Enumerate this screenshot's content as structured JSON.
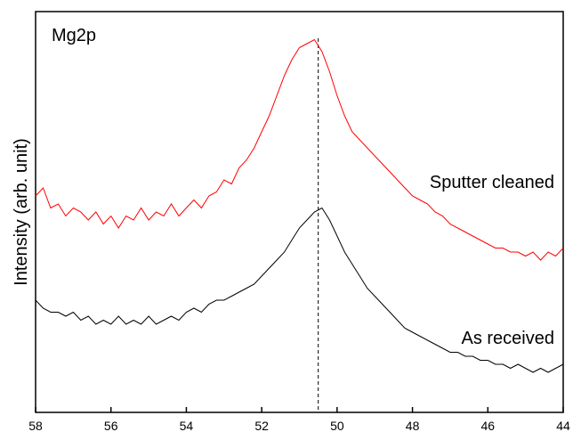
{
  "chart_data": {
    "type": "line",
    "title": "",
    "xlabel": "",
    "ylabel": "Intensity (arb. unit)",
    "xlim": [
      58,
      44
    ],
    "x_reversed": true,
    "ylim": [
      0,
      100
    ],
    "x_ticks": [
      58,
      56,
      54,
      52,
      50,
      48,
      46,
      44
    ],
    "grid": false,
    "panel_label": "Mg2p",
    "reference_line": {
      "x": 50.5,
      "style": "dashed",
      "color": "#000000"
    },
    "series": [
      {
        "label": "Sputter cleaned",
        "color": "#ff0000",
        "points": [
          [
            58.0,
            54
          ],
          [
            57.8,
            56
          ],
          [
            57.6,
            51
          ],
          [
            57.4,
            52
          ],
          [
            57.2,
            49
          ],
          [
            57.0,
            51
          ],
          [
            56.8,
            50
          ],
          [
            56.6,
            48
          ],
          [
            56.4,
            50
          ],
          [
            56.2,
            47
          ],
          [
            56.0,
            49
          ],
          [
            55.8,
            46
          ],
          [
            55.6,
            49
          ],
          [
            55.4,
            48
          ],
          [
            55.2,
            51
          ],
          [
            55.0,
            48
          ],
          [
            54.8,
            50
          ],
          [
            54.6,
            49
          ],
          [
            54.4,
            52
          ],
          [
            54.2,
            49
          ],
          [
            54.0,
            51
          ],
          [
            53.8,
            53
          ],
          [
            53.6,
            51
          ],
          [
            53.4,
            54
          ],
          [
            53.2,
            55
          ],
          [
            53.0,
            58
          ],
          [
            52.8,
            57
          ],
          [
            52.6,
            61
          ],
          [
            52.4,
            63
          ],
          [
            52.2,
            66
          ],
          [
            52.0,
            70
          ],
          [
            51.8,
            74
          ],
          [
            51.6,
            79
          ],
          [
            51.4,
            84
          ],
          [
            51.2,
            88
          ],
          [
            51.0,
            91
          ],
          [
            50.8,
            92
          ],
          [
            50.6,
            93
          ],
          [
            50.4,
            90
          ],
          [
            50.2,
            85
          ],
          [
            50.0,
            79
          ],
          [
            49.8,
            74
          ],
          [
            49.6,
            70
          ],
          [
            49.4,
            68
          ],
          [
            49.2,
            66
          ],
          [
            49.0,
            64
          ],
          [
            48.8,
            62
          ],
          [
            48.6,
            60
          ],
          [
            48.4,
            58
          ],
          [
            48.2,
            56
          ],
          [
            48.0,
            54
          ],
          [
            47.8,
            53
          ],
          [
            47.6,
            52
          ],
          [
            47.4,
            50
          ],
          [
            47.2,
            49
          ],
          [
            47.0,
            47
          ],
          [
            46.8,
            46
          ],
          [
            46.6,
            45
          ],
          [
            46.4,
            44
          ],
          [
            46.2,
            43
          ],
          [
            46.0,
            42
          ],
          [
            45.8,
            41
          ],
          [
            45.6,
            41
          ],
          [
            45.4,
            40
          ],
          [
            45.2,
            40
          ],
          [
            45.0,
            39
          ],
          [
            44.8,
            40
          ],
          [
            44.6,
            38
          ],
          [
            44.4,
            40
          ],
          [
            44.2,
            39
          ],
          [
            44.0,
            41
          ]
        ]
      },
      {
        "label": "As received",
        "color": "#000000",
        "points": [
          [
            58.0,
            28
          ],
          [
            57.8,
            26
          ],
          [
            57.6,
            25
          ],
          [
            57.4,
            25
          ],
          [
            57.2,
            24
          ],
          [
            57.0,
            25
          ],
          [
            56.8,
            23
          ],
          [
            56.6,
            24
          ],
          [
            56.4,
            22
          ],
          [
            56.2,
            23
          ],
          [
            56.0,
            22
          ],
          [
            55.8,
            24
          ],
          [
            55.6,
            22
          ],
          [
            55.4,
            23
          ],
          [
            55.2,
            22
          ],
          [
            55.0,
            24
          ],
          [
            54.8,
            22
          ],
          [
            54.6,
            23
          ],
          [
            54.4,
            24
          ],
          [
            54.2,
            23
          ],
          [
            54.0,
            25
          ],
          [
            53.8,
            26
          ],
          [
            53.6,
            25
          ],
          [
            53.4,
            27
          ],
          [
            53.2,
            28
          ],
          [
            53.0,
            28
          ],
          [
            52.8,
            29
          ],
          [
            52.6,
            30
          ],
          [
            52.4,
            31
          ],
          [
            52.2,
            32
          ],
          [
            52.0,
            34
          ],
          [
            51.8,
            36
          ],
          [
            51.6,
            38
          ],
          [
            51.4,
            40
          ],
          [
            51.2,
            43
          ],
          [
            51.0,
            46
          ],
          [
            50.8,
            48
          ],
          [
            50.6,
            50
          ],
          [
            50.4,
            51
          ],
          [
            50.2,
            48
          ],
          [
            50.0,
            44
          ],
          [
            49.8,
            40
          ],
          [
            49.6,
            37
          ],
          [
            49.4,
            34
          ],
          [
            49.2,
            31
          ],
          [
            49.0,
            29
          ],
          [
            48.8,
            27
          ],
          [
            48.6,
            25
          ],
          [
            48.4,
            23
          ],
          [
            48.2,
            21
          ],
          [
            48.0,
            20
          ],
          [
            47.8,
            19
          ],
          [
            47.6,
            18
          ],
          [
            47.4,
            17
          ],
          [
            47.2,
            16
          ],
          [
            47.0,
            15
          ],
          [
            46.8,
            15
          ],
          [
            46.6,
            14
          ],
          [
            46.4,
            14
          ],
          [
            46.2,
            13
          ],
          [
            46.0,
            13
          ],
          [
            45.8,
            12
          ],
          [
            45.6,
            12
          ],
          [
            45.4,
            11
          ],
          [
            45.2,
            12
          ],
          [
            45.0,
            11
          ],
          [
            44.8,
            10
          ],
          [
            44.6,
            11
          ],
          [
            44.4,
            10
          ],
          [
            44.2,
            11
          ],
          [
            44.0,
            12
          ]
        ]
      }
    ]
  }
}
